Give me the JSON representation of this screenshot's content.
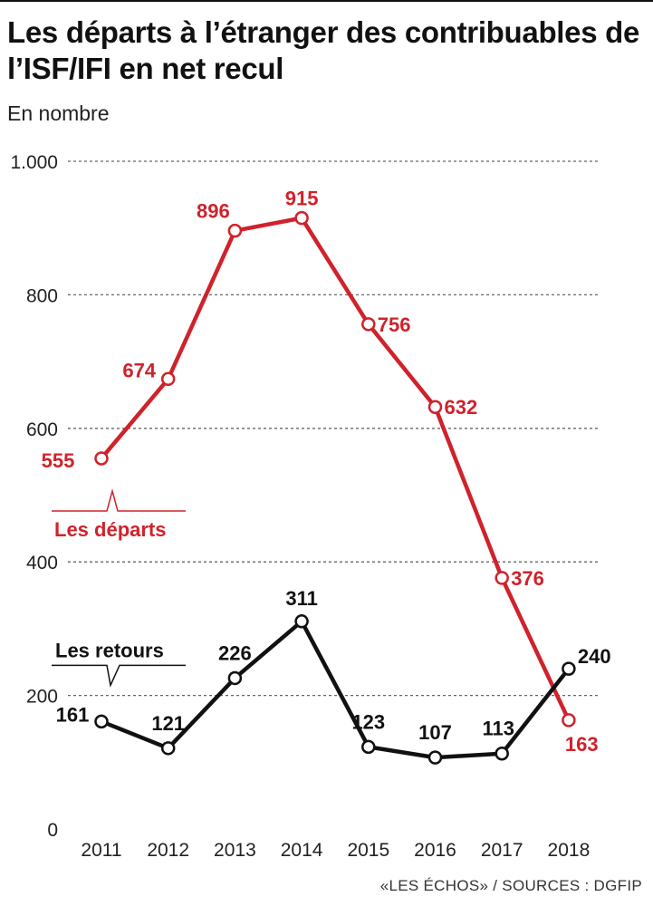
{
  "header": {
    "title": "Les départs à l’étranger des contribuables de l’ISF/IFI en net recul",
    "subtitle": "En nombre"
  },
  "footer": {
    "source": "«LES ÉCHOS» / SOURCES : DGFIP"
  },
  "colors": {
    "departs": "#d0222b",
    "retours": "#111111",
    "grid": "#666666"
  },
  "chart_data": {
    "type": "line",
    "title": "Les départs à l’étranger des contribuables de l’ISF/IFI en net recul",
    "ylabel": "En nombre",
    "x": [
      "2011",
      "2012",
      "2013",
      "2014",
      "2015",
      "2016",
      "2017",
      "2018"
    ],
    "ylim": [
      0,
      1000
    ],
    "yticks": [
      0,
      200,
      400,
      600,
      800,
      1000
    ],
    "ytick_labels": [
      "0",
      "200",
      "400",
      "600",
      "800",
      "1.000"
    ],
    "grid": true,
    "series": [
      {
        "name": "Les départs",
        "values": [
          555,
          674,
          896,
          915,
          756,
          632,
          376,
          163
        ]
      },
      {
        "name": "Les retours",
        "values": [
          161,
          121,
          226,
          311,
          123,
          107,
          113,
          240
        ]
      }
    ]
  }
}
